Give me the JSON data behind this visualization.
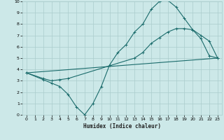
{
  "xlabel": "Humidex (Indice chaleur)",
  "ylabel": "",
  "bg_color": "#cce8e8",
  "grid_color": "#aacccc",
  "line_color": "#1a6b6b",
  "xlim": [
    -0.5,
    23.5
  ],
  "ylim": [
    0,
    10
  ],
  "xticks": [
    0,
    1,
    2,
    3,
    4,
    5,
    6,
    7,
    8,
    9,
    10,
    11,
    12,
    13,
    14,
    15,
    16,
    17,
    18,
    19,
    20,
    21,
    22,
    23
  ],
  "yticks": [
    0,
    1,
    2,
    3,
    4,
    5,
    6,
    7,
    8,
    9,
    10
  ],
  "line1": {
    "x": [
      0,
      2,
      3,
      4,
      5,
      6,
      7,
      8,
      9,
      10,
      11,
      12,
      13,
      14,
      15,
      16,
      17,
      18,
      19,
      20,
      21,
      22,
      23
    ],
    "y": [
      3.7,
      3.1,
      2.8,
      2.5,
      1.8,
      0.7,
      0.0,
      1.0,
      2.5,
      4.4,
      5.5,
      6.2,
      7.3,
      8.0,
      9.3,
      10.0,
      10.1,
      9.5,
      8.5,
      7.5,
      6.7,
      5.2,
      5.0
    ]
  },
  "line2": {
    "x": [
      0,
      2,
      3,
      4,
      5,
      13,
      14,
      15,
      16,
      17,
      18,
      19,
      20,
      21,
      22,
      23
    ],
    "y": [
      3.7,
      3.2,
      3.0,
      3.1,
      3.2,
      5.0,
      5.5,
      6.3,
      6.8,
      7.3,
      7.6,
      7.6,
      7.5,
      7.0,
      6.5,
      5.0
    ]
  },
  "line3": {
    "x": [
      0,
      23
    ],
    "y": [
      3.7,
      5.0
    ]
  }
}
